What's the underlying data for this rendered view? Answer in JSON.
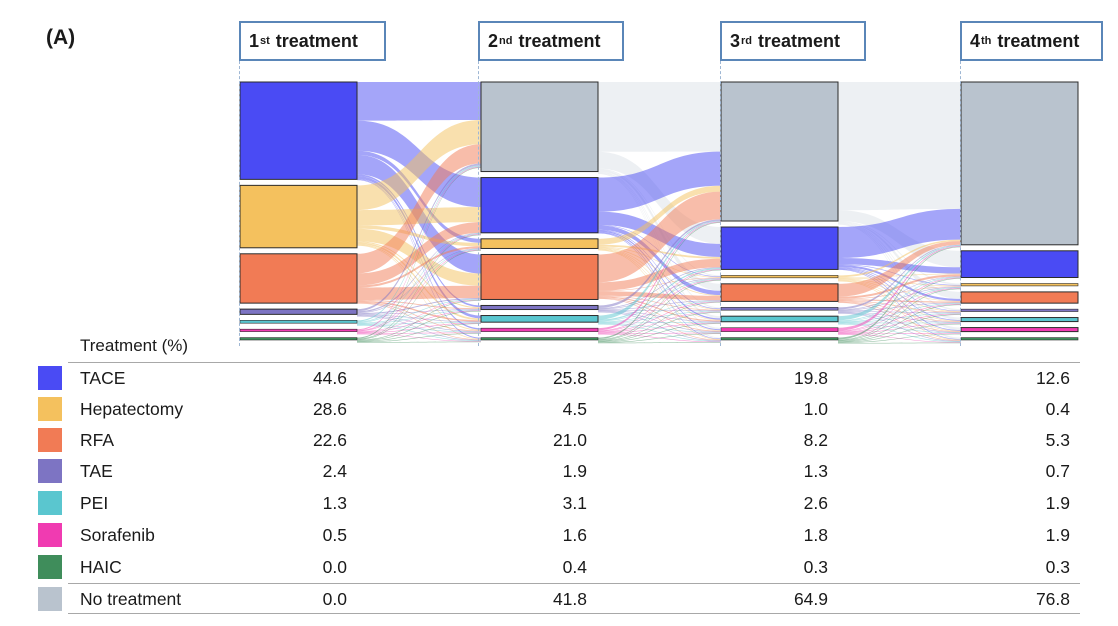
{
  "panel_label": "(A)",
  "chart_data": {
    "type": "sankey",
    "stages": [
      {
        "num": "1",
        "sup": "st",
        "rest": "treatment"
      },
      {
        "num": "2",
        "sup": "nd",
        "rest": "treatment"
      },
      {
        "num": "3",
        "sup": "rd",
        "rest": "treatment"
      },
      {
        "num": "4",
        "sup": "th",
        "rest": "treatment"
      }
    ],
    "table_header": "Treatment (%)",
    "categories": [
      "TACE",
      "Hepatectomy",
      "RFA",
      "TAE",
      "PEI",
      "Sorafenib",
      "HAIC",
      "No treatment"
    ],
    "colors": {
      "TACE": "#4a4bf4",
      "Hepatectomy": "#f4c15e",
      "RFA": "#f17b55",
      "TAE": "#7d74c3",
      "PEI": "#5ac6cf",
      "Sorafenib": "#f03bb1",
      "HAIC": "#3f8d5b",
      "No treatment": "#b9c3ce"
    },
    "rows": [
      {
        "name": "TACE",
        "values": [
          "44.6",
          "25.8",
          "19.8",
          "12.6"
        ]
      },
      {
        "name": "Hepatectomy",
        "values": [
          "28.6",
          "4.5",
          "1.0",
          "0.4"
        ]
      },
      {
        "name": "RFA",
        "values": [
          "22.6",
          "21.0",
          "8.2",
          "5.3"
        ]
      },
      {
        "name": "TAE",
        "values": [
          "2.4",
          "1.9",
          "1.3",
          "0.7"
        ]
      },
      {
        "name": "PEI",
        "values": [
          "1.3",
          "3.1",
          "2.6",
          "1.9"
        ]
      },
      {
        "name": "Sorafenib",
        "values": [
          "0.5",
          "1.6",
          "1.8",
          "1.9"
        ]
      },
      {
        "name": "HAIC",
        "values": [
          "0.0",
          "0.4",
          "0.3",
          "0.3"
        ]
      },
      {
        "name": "No treatment",
        "values": [
          "0.0",
          "41.8",
          "64.9",
          "76.8"
        ]
      }
    ]
  }
}
